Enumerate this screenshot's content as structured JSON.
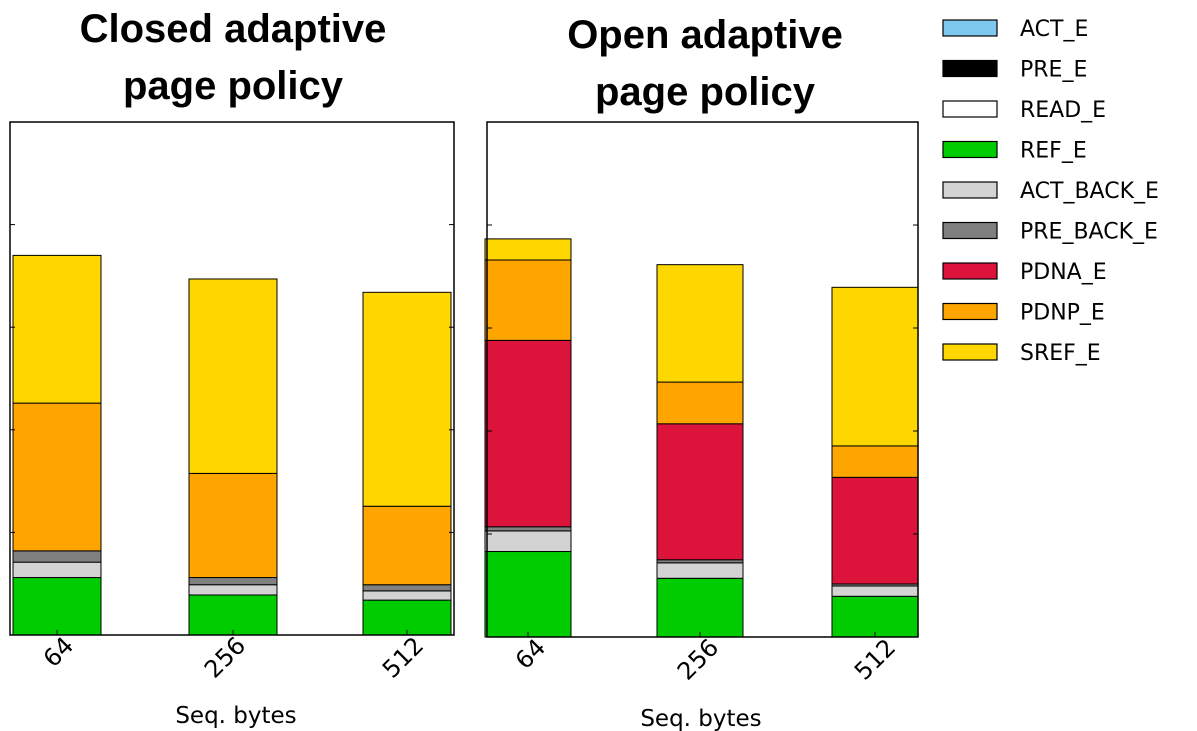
{
  "legend": {
    "placement": "right",
    "entries": [
      {
        "name": "ACT_E",
        "color": "#7ec8f0"
      },
      {
        "name": "PRE_E",
        "color": "#000000"
      },
      {
        "name": "READ_E",
        "color": "#ffffff"
      },
      {
        "name": "REF_E",
        "color": "#00cc00"
      },
      {
        "name": "ACT_BACK_E",
        "color": "#d3d3d3"
      },
      {
        "name": "PRE_BACK_E",
        "color": "#808080"
      },
      {
        "name": "PDNA_E",
        "color": "#dc143c"
      },
      {
        "name": "PDNP_E",
        "color": "#ffa500"
      },
      {
        "name": "SREF_E",
        "color": "#ffd700"
      }
    ]
  },
  "chart_data": [
    {
      "type": "bar",
      "stacked": true,
      "title": "Closed adaptive page policy",
      "xlabel": "Seq. bytes",
      "ylabel": "",
      "categories": [
        "64",
        "256",
        "512"
      ],
      "ylim": [
        0,
        100
      ],
      "grid": false,
      "series": [
        {
          "name": "ACT_E",
          "values": [
            0,
            0,
            0
          ]
        },
        {
          "name": "PRE_E",
          "values": [
            0,
            0,
            0
          ]
        },
        {
          "name": "READ_E",
          "values": [
            0,
            0,
            0
          ]
        },
        {
          "name": "REF_E",
          "values": [
            11.2,
            7.8,
            6.8
          ]
        },
        {
          "name": "ACT_BACK_E",
          "values": [
            3.0,
            2.0,
            1.8
          ]
        },
        {
          "name": "PRE_BACK_E",
          "values": [
            2.2,
            1.4,
            1.2
          ]
        },
        {
          "name": "PDNA_E",
          "values": [
            0,
            0,
            0
          ]
        },
        {
          "name": "PDNP_E",
          "values": [
            28.8,
            20.3,
            15.3
          ]
        },
        {
          "name": "SREF_E",
          "values": [
            28.8,
            37.9,
            41.7
          ]
        }
      ]
    },
    {
      "type": "bar",
      "stacked": true,
      "title": "Open adaptive page policy",
      "xlabel": "Seq. bytes",
      "ylabel": "",
      "categories": [
        "64",
        "256",
        "512"
      ],
      "ylim": [
        0,
        100
      ],
      "grid": false,
      "series": [
        {
          "name": "ACT_E",
          "values": [
            0,
            0,
            0
          ]
        },
        {
          "name": "PRE_E",
          "values": [
            0,
            0,
            0
          ]
        },
        {
          "name": "READ_E",
          "values": [
            0,
            0,
            0
          ]
        },
        {
          "name": "REF_E",
          "values": [
            16.6,
            11.4,
            7.9
          ]
        },
        {
          "name": "ACT_BACK_E",
          "values": [
            4.0,
            3.0,
            2.0
          ]
        },
        {
          "name": "PRE_BACK_E",
          "values": [
            0.8,
            0.6,
            0.4
          ]
        },
        {
          "name": "PDNA_E",
          "values": [
            36.2,
            26.4,
            20.7
          ]
        },
        {
          "name": "PDNP_E",
          "values": [
            15.6,
            8.1,
            6.1
          ]
        },
        {
          "name": "SREF_E",
          "values": [
            4.1,
            22.8,
            30.8
          ]
        }
      ]
    }
  ]
}
